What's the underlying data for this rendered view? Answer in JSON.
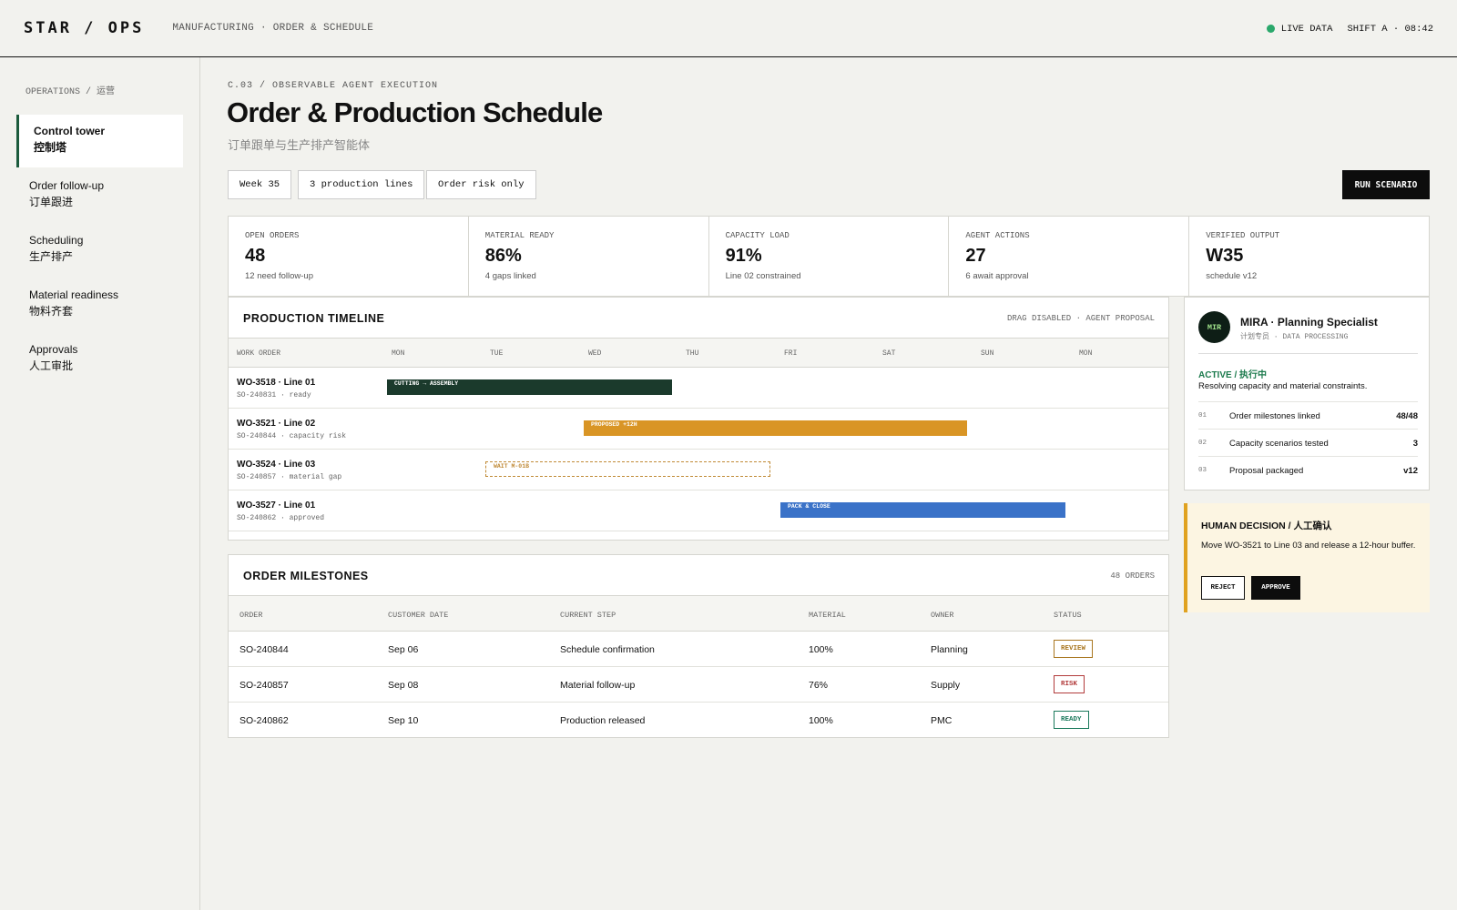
{
  "app": {
    "logo": "STAR / OPS",
    "nav": "MANUFACTURING · ORDER & SCHEDULE",
    "live": "LIVE DATA",
    "shift": "SHIFT A · 08:42"
  },
  "sidebar": {
    "heading": "OPERATIONS / 运营",
    "items": [
      {
        "en": "Control tower",
        "zh": "控制塔"
      },
      {
        "en": "Order follow-up",
        "zh": "订单跟进"
      },
      {
        "en": "Scheduling",
        "zh": "生产排产"
      },
      {
        "en": "Material readiness",
        "zh": "物料齐套"
      },
      {
        "en": "Approvals",
        "zh": "人工审批"
      }
    ]
  },
  "header": {
    "kicker": "C.03 / OBSERVABLE AGENT EXECUTION",
    "title": "Order & Production Schedule",
    "subtitle": "订单跟单与生产排产智能体",
    "filters": [
      "Week 35",
      "3 production lines",
      "Order risk only"
    ],
    "run_label": "RUN SCENARIO"
  },
  "kpis": [
    {
      "label": "OPEN ORDERS",
      "value": "48",
      "note": "12 need follow-up"
    },
    {
      "label": "MATERIAL READY",
      "value": "86%",
      "note": "4 gaps linked"
    },
    {
      "label": "CAPACITY LOAD",
      "value": "91%",
      "note": "Line 02 constrained"
    },
    {
      "label": "AGENT ACTIONS",
      "value": "27",
      "note": "6 await approval"
    },
    {
      "label": "VERIFIED OUTPUT",
      "value": "W35",
      "note": "schedule v12"
    }
  ],
  "timeline": {
    "title": "PRODUCTION TIMELINE",
    "meta": "DRAG DISABLED · AGENT PROPOSAL",
    "col_work_order": "WORK ORDER",
    "days": [
      "MON",
      "TUE",
      "WED",
      "THU",
      "FRI",
      "SAT",
      "SUN",
      "MON"
    ],
    "rows": [
      {
        "wo": "WO-3518 · Line 01",
        "so": "SO-240831 · ready",
        "bar_label": "CUTTING → ASSEMBLY",
        "start_day": 0,
        "duration_days": 2.9,
        "color": "#1b3a2c",
        "style": "solid"
      },
      {
        "wo": "WO-3521 · Line 02",
        "so": "SO-240844 · capacity risk",
        "bar_label": "PROPOSED +12H",
        "start_day": 2,
        "duration_days": 3.9,
        "color": "#d99525",
        "style": "solid"
      },
      {
        "wo": "WO-3524 · Line 03",
        "so": "SO-240857 · material gap",
        "bar_label": "WAIT M-01B",
        "start_day": 1,
        "duration_days": 2.9,
        "color": "#c08a36",
        "style": "dashed"
      },
      {
        "wo": "WO-3527 · Line 01",
        "so": "SO-240862 · approved",
        "bar_label": "PACK & CLOSE",
        "start_day": 4,
        "duration_days": 2.9,
        "color": "#3a72c8",
        "style": "solid"
      }
    ]
  },
  "milestones": {
    "title": "ORDER MILESTONES",
    "count": "48 ORDERS",
    "columns": [
      "ORDER",
      "CUSTOMER DATE",
      "CURRENT STEP",
      "MATERIAL",
      "OWNER",
      "STATUS"
    ],
    "rows": [
      {
        "order": "SO-240844",
        "date": "Sep 06",
        "step": "Schedule confirmation",
        "material": "100%",
        "owner": "Planning",
        "status": "REVIEW",
        "status_color": "#a9761f"
      },
      {
        "order": "SO-240857",
        "date": "Sep 08",
        "step": "Material follow-up",
        "material": "76%",
        "owner": "Supply",
        "status": "RISK",
        "status_color": "#b23b3b"
      },
      {
        "order": "SO-240862",
        "date": "Sep 10",
        "step": "Production released",
        "material": "100%",
        "owner": "PMC",
        "status": "READY",
        "status_color": "#1b7a5c"
      }
    ]
  },
  "agent": {
    "initials": "MIR",
    "name": "MIRA · Planning Specialist",
    "role": "计划专员 · DATA PROCESSING",
    "status": "ACTIVE / 执行中",
    "description": "Resolving capacity and material constraints.",
    "steps": [
      {
        "n": "01",
        "text": "Order milestones linked",
        "value": "48/48"
      },
      {
        "n": "02",
        "text": "Capacity scenarios tested",
        "value": "3"
      },
      {
        "n": "03",
        "text": "Proposal packaged",
        "value": "v12"
      }
    ]
  },
  "decision": {
    "title": "HUMAN DECISION / 人工确认",
    "text": "Move WO-3521 to Line 03 and release a 12-hour buffer.",
    "reject": "REJECT",
    "approve": "APPROVE"
  },
  "colors": {
    "accent": "#1b5b3c",
    "live": "#2aa86b",
    "warning": "#e0a220"
  }
}
